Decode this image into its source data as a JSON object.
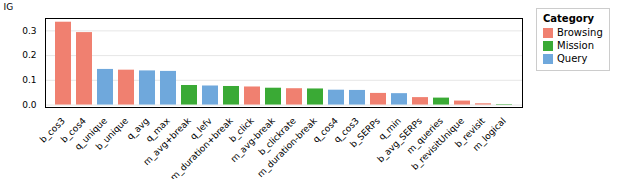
{
  "chart_data": {
    "type": "bar",
    "categories": [
      "b_cos3",
      "b_cos4",
      "q_unique",
      "b_unique",
      "q_avg",
      "q_max",
      "m_avg+break",
      "q_lefv",
      "m_duration+break",
      "b_click",
      "m_avg-break",
      "b_clickrate",
      "m_duration-break",
      "q_cos4",
      "q_cos3",
      "b_SERPs",
      "q_min",
      "b_avg_SERPs",
      "m_queries",
      "b_revisitUnique",
      "b_revisit",
      "m_logical"
    ],
    "values": [
      0.335,
      0.293,
      0.144,
      0.141,
      0.138,
      0.136,
      0.079,
      0.077,
      0.075,
      0.073,
      0.068,
      0.066,
      0.065,
      0.06,
      0.059,
      0.047,
      0.046,
      0.03,
      0.028,
      0.016,
      0.005,
      0.002
    ],
    "colors": [
      "#f08070",
      "#f08070",
      "#6fa8dc",
      "#f08070",
      "#6fa8dc",
      "#6fa8dc",
      "#3aaa35",
      "#6fa8dc",
      "#3aaa35",
      "#f08070",
      "#3aaa35",
      "#f08070",
      "#3aaa35",
      "#6fa8dc",
      "#6fa8dc",
      "#f08070",
      "#6fa8dc",
      "#f08070",
      "#3aaa35",
      "#f08070",
      "#f08070",
      "#3aaa35"
    ],
    "ylabel": "IG",
    "ylim": [
      -0.01,
      0.35
    ],
    "yticks": [
      {
        "value": 0,
        "label": "0.0"
      },
      0.1,
      0.2,
      0.3
    ],
    "grid": true,
    "legend": "upper right",
    "legend_title": "Category",
    "legend_labels": [
      "Browsing",
      "Mission",
      "Query"
    ],
    "legend_colors": [
      "#f08070",
      "#3aaa35",
      "#6fa8dc"
    ]
  }
}
